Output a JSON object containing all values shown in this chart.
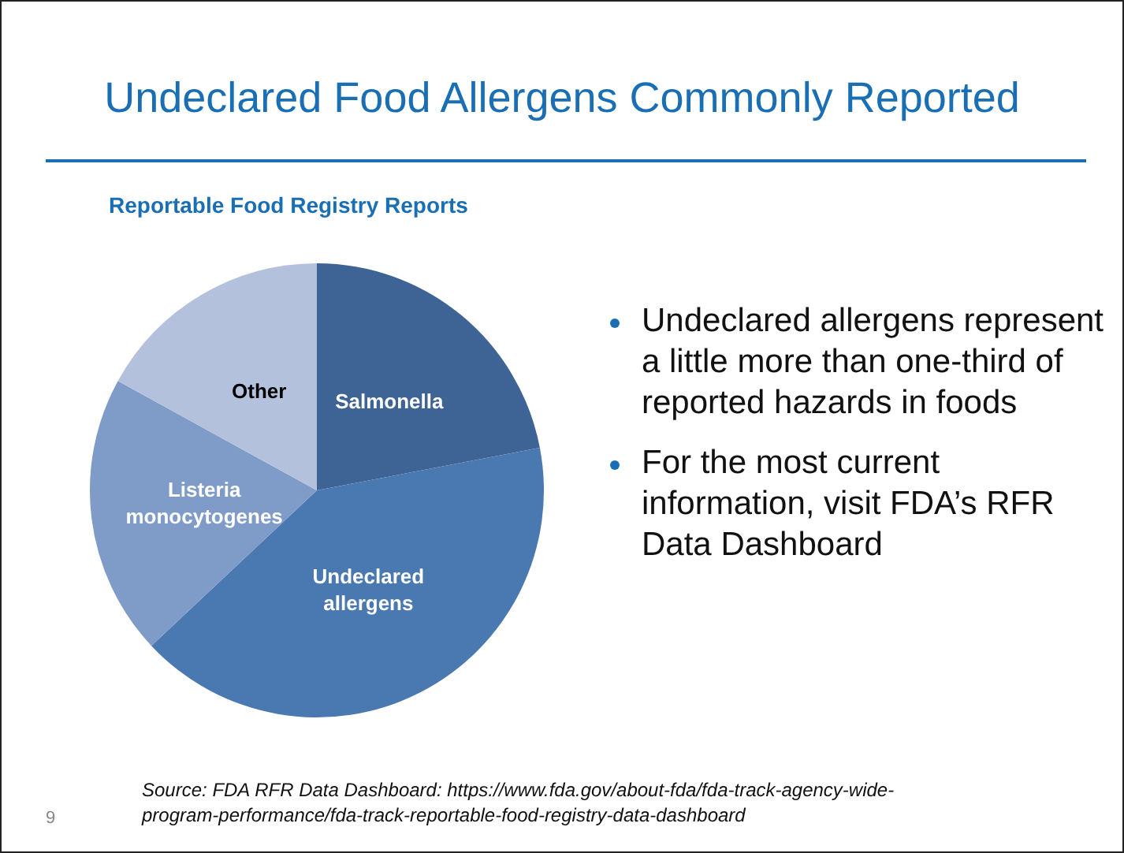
{
  "chart_data": {
    "type": "pie",
    "title": "Undeclared Food Allergens Commonly Reported",
    "subtitle": "Reportable Food Registry Reports",
    "categories": [
      "Salmonella",
      "Undeclared allergens",
      "Listeria monocytogenes",
      "Other"
    ],
    "values": [
      22,
      41,
      20,
      17
    ],
    "colors": [
      "#3e6496",
      "#4a78b0",
      "#7f9bc8",
      "#b3c1dd"
    ],
    "legend": false,
    "annotations": [
      "Undeclared allergens represent a little more than one-third of reported hazards in foods",
      "For the most current information, visit FDA’s RFR Data Dashboard",
      "Source: FDA RFR Data Dashboard: https://www.fda.gov/about-fda/fda-track-agency-wide-program-performance/fda-track-reportable-food-registry-data-dashboard",
      "9"
    ]
  }
}
